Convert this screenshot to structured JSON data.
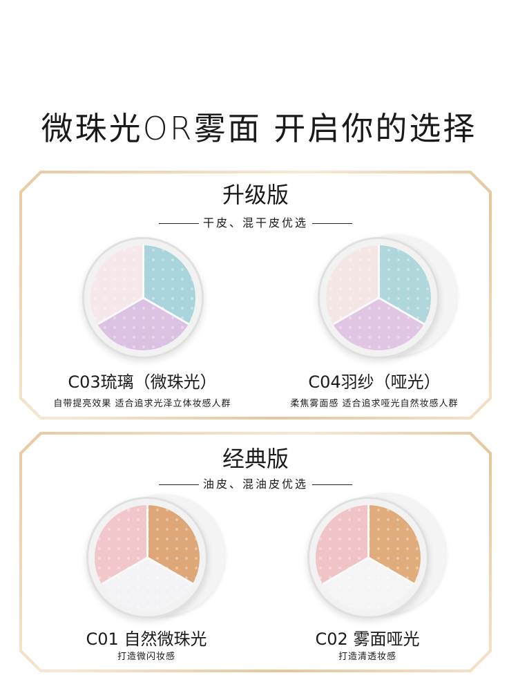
{
  "headline": "微珠光OR雾面 开启你的选择",
  "sections": [
    {
      "title": "升级版",
      "subtitle": "干皮、混干皮优选",
      "products": [
        {
          "name": "C03琉璃（微珠光）",
          "desc": "自带提亮效果 适合追求光泽立体妆感人群",
          "colors": [
            "#a9d4dc",
            "#dcc2e2",
            "#f6e8ea"
          ]
        },
        {
          "name": "C04羽纱（哑光）",
          "desc": "柔焦雾面感 适合追求哑光自然妆感人群",
          "colors": [
            "#b0d7dc",
            "#e0c6e3",
            "#f5e6e6"
          ]
        }
      ]
    },
    {
      "title": "经典版",
      "subtitle": "油皮、混油皮优选",
      "products": [
        {
          "name": "C01 自然微珠光",
          "desc": "打造微闪妆感",
          "colors": [
            "#dea778",
            "#f4f4f6",
            "#f2c7cc"
          ]
        },
        {
          "name": "C02 雾面哑光",
          "desc": "打造清透妆感",
          "colors": [
            "#e1ac7c",
            "#f5f5f6",
            "#f0c4c7"
          ]
        }
      ]
    }
  ]
}
